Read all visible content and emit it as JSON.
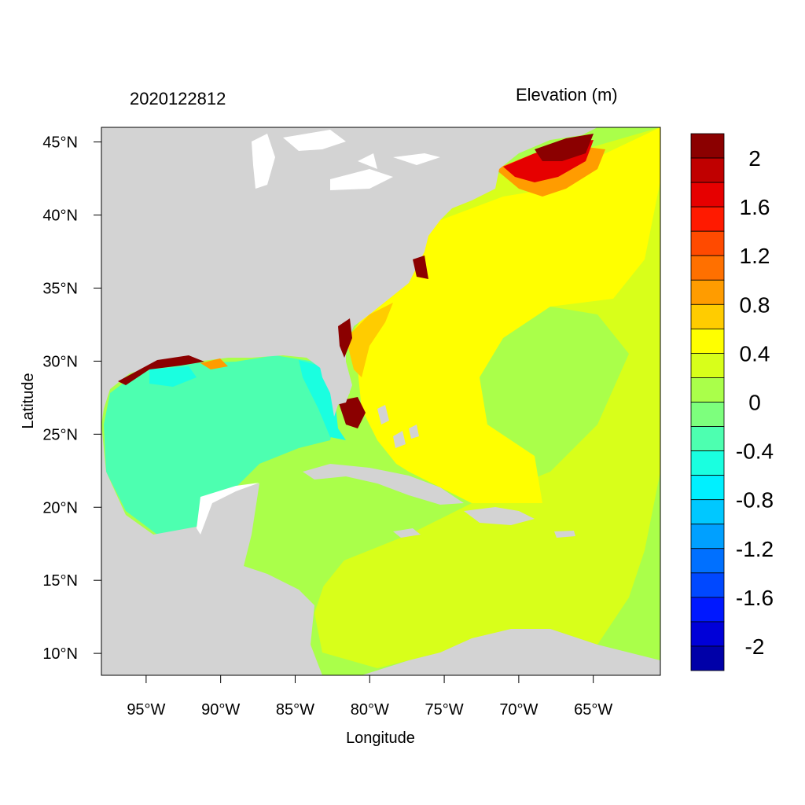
{
  "map": {
    "date_label": "2020122812",
    "variable_label": "Elevation (m)",
    "x_axis_label": "Longitude",
    "y_axis_label": "Latitude",
    "lon_range": [
      -98,
      -60.5
    ],
    "lat_range": [
      8.5,
      46
    ],
    "lon_ticks": [
      {
        "value": -95,
        "label": "95°W"
      },
      {
        "value": -90,
        "label": "90°W"
      },
      {
        "value": -85,
        "label": "85°W"
      },
      {
        "value": -80,
        "label": "80°W"
      },
      {
        "value": -75,
        "label": "75°W"
      },
      {
        "value": -70,
        "label": "70°W"
      },
      {
        "value": -65,
        "label": "65°W"
      }
    ],
    "lat_ticks": [
      {
        "value": 45,
        "label": "45°N"
      },
      {
        "value": 40,
        "label": "40°N"
      },
      {
        "value": 35,
        "label": "35°N"
      },
      {
        "value": 30,
        "label": "30°N"
      },
      {
        "value": 25,
        "label": "25°N"
      },
      {
        "value": 20,
        "label": "20°N"
      },
      {
        "value": 15,
        "label": "15°N"
      },
      {
        "value": 10,
        "label": "10°N"
      }
    ],
    "land_color": "#d3d3d3",
    "lake_color": "#ffffff"
  },
  "colorbar": {
    "colors": [
      "#8b0000",
      "#c00000",
      "#e60000",
      "#ff1a00",
      "#ff4a00",
      "#ff7000",
      "#ff9c00",
      "#ffcc00",
      "#ffff00",
      "#d8ff1a",
      "#aaff4a",
      "#7dff7d",
      "#4dffb0",
      "#1affe0",
      "#00f0ff",
      "#00c8ff",
      "#00a0ff",
      "#0070ff",
      "#0048ff",
      "#0018ff",
      "#0000d8",
      "#0000a8"
    ],
    "labels": [
      "2",
      "1.6",
      "1.2",
      "0.8",
      "0.4",
      "0",
      "-0.4",
      "-0.8",
      "-1.2",
      "-1.6",
      "-2"
    ]
  }
}
